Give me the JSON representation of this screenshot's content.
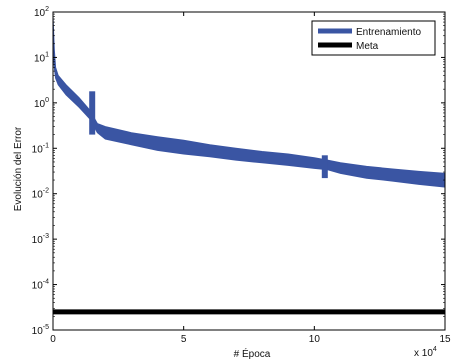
{
  "chart_data": {
    "type": "line",
    "title": "",
    "xlabel": "# Época",
    "ylabel": "Evolución del Error",
    "x_exponent_label": "x 10",
    "x_exponent_power": "4",
    "xlim": [
      0,
      15
    ],
    "ylim_log10": [
      -5,
      2
    ],
    "yscale": "log",
    "grid": false,
    "legend_position": "top-right",
    "x_ticks": [
      0,
      5,
      10,
      15
    ],
    "x_tick_labels": [
      "0",
      "5",
      "10",
      "15"
    ],
    "y_ticks_log10": [
      -5,
      -4,
      -3,
      -2,
      -1,
      0,
      1,
      2
    ],
    "y_tick_base": "10",
    "y_tick_powers": [
      "-5",
      "-4",
      "-3",
      "-2",
      "-1",
      "0",
      "1",
      "2"
    ],
    "series": [
      {
        "name": "Entrenamiento",
        "color": "#3a55a3",
        "x": [
          0,
          0.05,
          0.1,
          0.2,
          0.5,
          1.0,
          1.4,
          1.7,
          2.0,
          3,
          4,
          5,
          6,
          7,
          8,
          9,
          10,
          10.5,
          11,
          12,
          13,
          14,
          15
        ],
        "y_low": [
          20,
          6,
          3.5,
          2.5,
          1.5,
          0.8,
          0.45,
          0.22,
          0.16,
          0.12,
          0.09,
          0.075,
          0.065,
          0.055,
          0.048,
          0.042,
          0.036,
          0.034,
          0.028,
          0.022,
          0.019,
          0.016,
          0.014
        ],
        "y_high": [
          80,
          15,
          6,
          4,
          2.5,
          1.3,
          0.7,
          0.35,
          0.3,
          0.22,
          0.18,
          0.15,
          0.12,
          0.1,
          0.085,
          0.075,
          0.062,
          0.055,
          0.048,
          0.04,
          0.035,
          0.031,
          0.028
        ]
      },
      {
        "name": "Meta",
        "color": "#000000",
        "x": [
          0,
          15
        ],
        "y": [
          2.5e-05,
          2.5e-05
        ]
      }
    ],
    "annotations": [
      {
        "x": 1.5,
        "y_low": 0.2,
        "y_high": 1.8
      },
      {
        "x": 10.4,
        "y_low": 0.022,
        "y_high": 0.07
      }
    ]
  }
}
